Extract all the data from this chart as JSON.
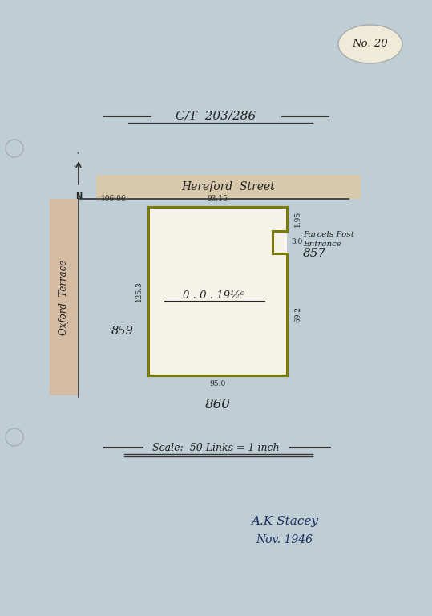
{
  "bg_color": "#bfcdd5",
  "title_text": "C/T  203/286",
  "scale_text": "Scale:  50 Links = 1 inch",
  "no_label": "No. 20",
  "street_name": "Hereford  Street",
  "street_color": "#ddc9a8",
  "oxford_terrace": "Oxford  Terrace",
  "oxford_color": "#d9b89a",
  "parcel_color": "#7a7a00",
  "lot_left": "859",
  "right_label_line1": "Parcels Post",
  "right_label_line2": "Entrance",
  "right_label_line3": "857",
  "lot_below": "860",
  "meas_top_left": "106.06",
  "meas_top_inner": "93.15",
  "meas_right_top": "1.95",
  "meas_right_step": "3.0",
  "meas_left_side": "125.3",
  "meas_right_side": "69.2",
  "meas_bottom": "95.0",
  "area_text": "0 . 0 . 19½⁰",
  "sig_line1": "A.K Stacey",
  "sig_line2": "Nov. 1946",
  "line_color": "#333333",
  "text_color": "#222222",
  "sig_color": "#1a3060",
  "badge_color": "#f0ead8",
  "white_fill": "#f5f2ea"
}
